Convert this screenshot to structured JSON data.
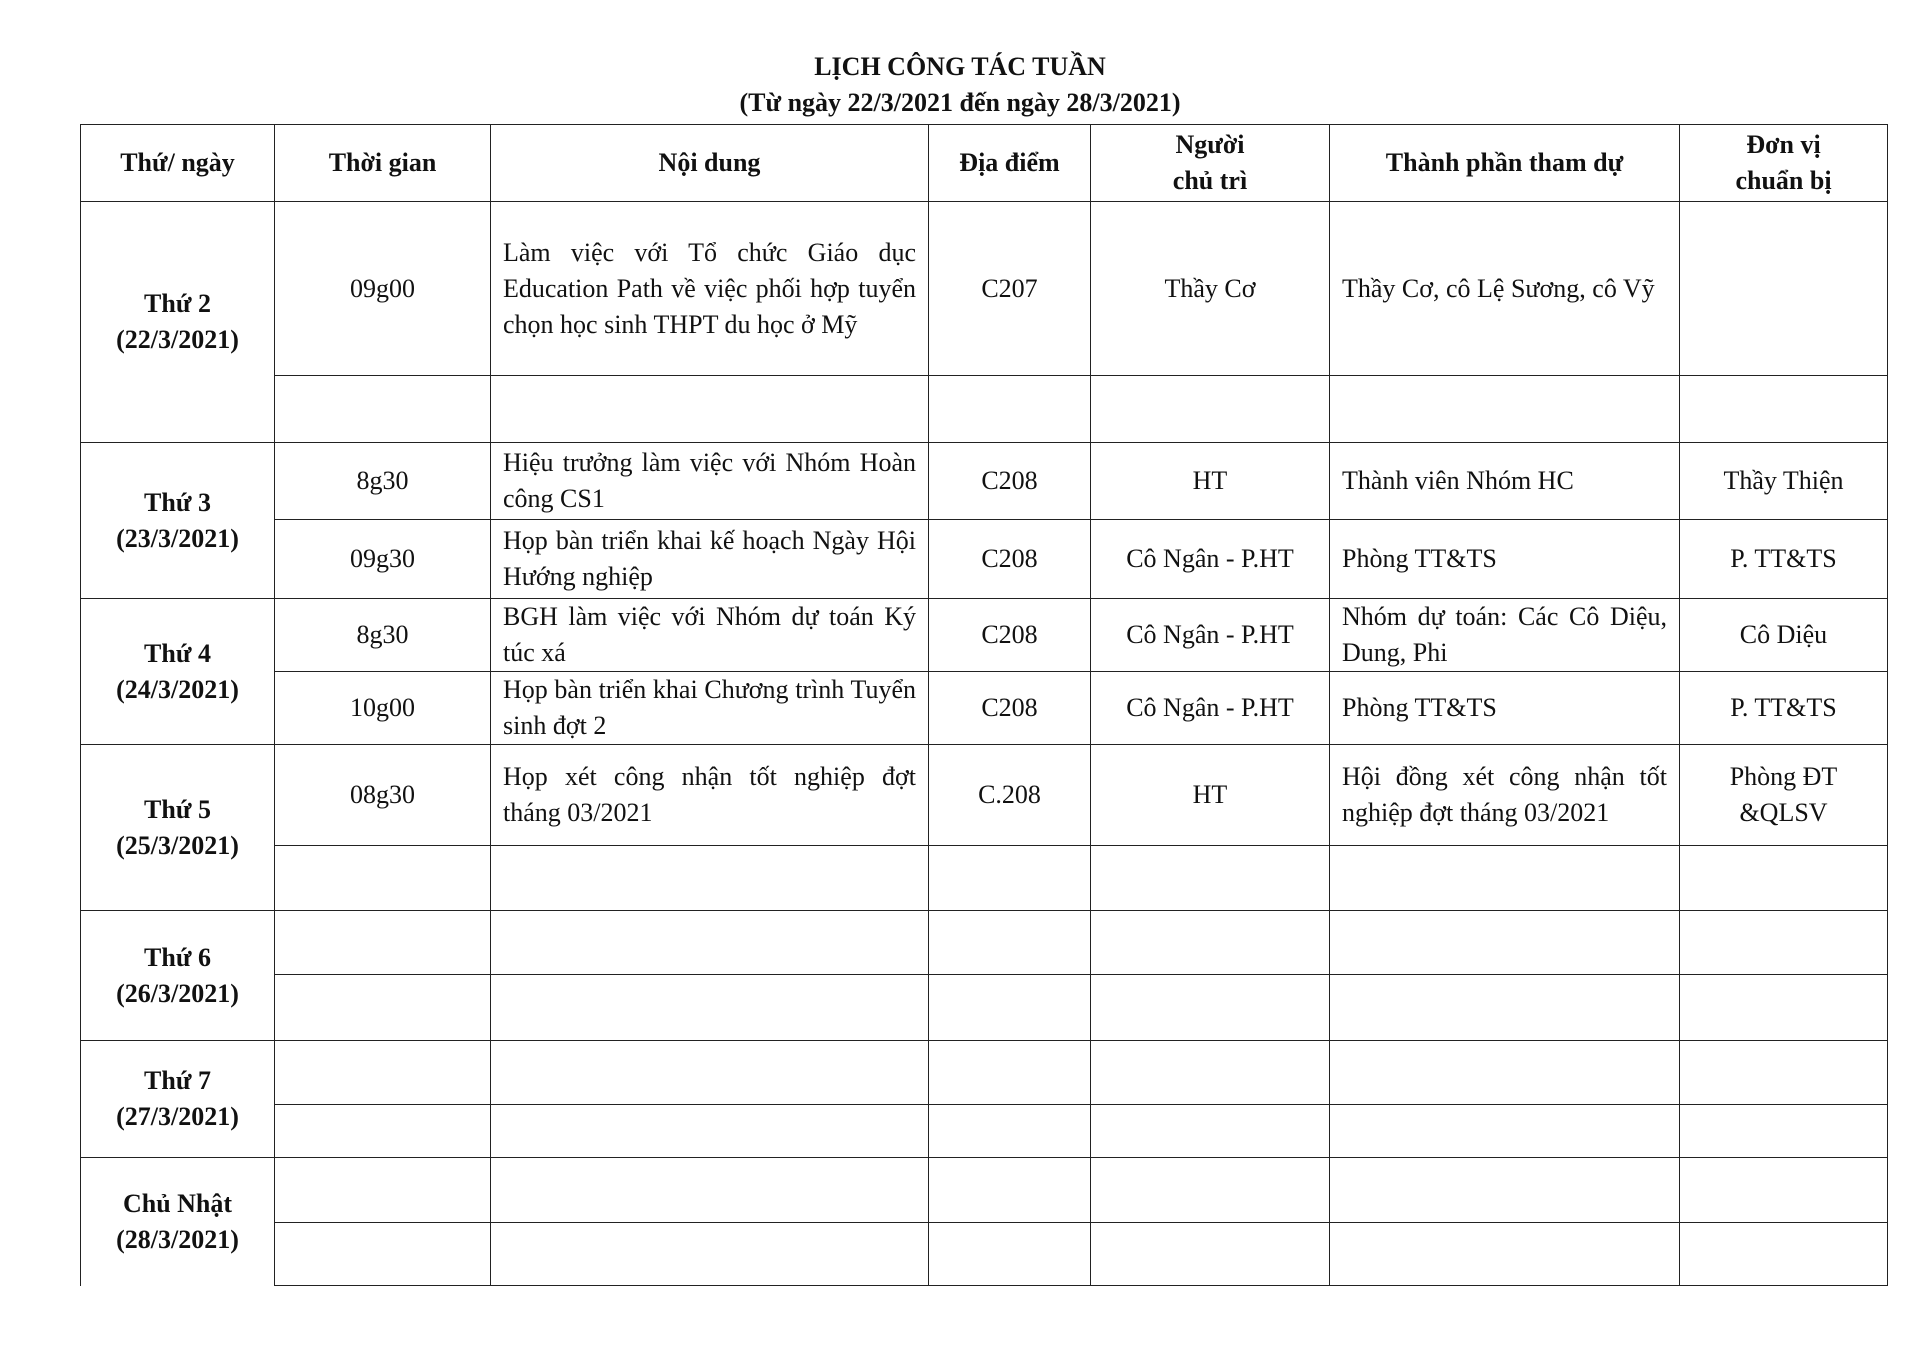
{
  "title": "LỊCH CÔNG TÁC TUẦN",
  "subtitle": "(Từ ngày 22/3/2021 đến ngày 28/3/2021)",
  "headers": [
    "Thứ/ ngày",
    "Thời gian",
    "Nội dung",
    "Địa điểm",
    "Người chủ trì",
    "Thành phần tham dự",
    "Đơn vị chuẩn bị"
  ],
  "days": [
    {
      "day": "Thứ 2",
      "date": "(22/3/2021)",
      "rows": [
        {
          "time": "09g00",
          "content": "Làm việc với Tổ chức Giáo dục Education Path về việc phối hợp tuyển chọn học sinh THPT du học ở Mỹ",
          "place": "C207",
          "host": "Thầy Cơ",
          "attendees": "Thầy Cơ, cô Lệ Sương, cô Vỹ",
          "prep": ""
        },
        {
          "time": "",
          "content": "",
          "place": "",
          "host": "",
          "attendees": "",
          "prep": ""
        }
      ]
    },
    {
      "day": "Thứ 3",
      "date": "(23/3/2021)",
      "rows": [
        {
          "time": "8g30",
          "content": "Hiệu trưởng làm việc với Nhóm Hoàn công CS1",
          "place": "C208",
          "host": "HT",
          "attendees": "Thành viên Nhóm HC",
          "prep": "Thầy Thiện"
        },
        {
          "time": "09g30",
          "content": "Họp bàn triển khai kế hoạch Ngày Hội Hướng nghiệp",
          "place": "C208",
          "host": "Cô Ngân - P.HT",
          "attendees": "Phòng TT&TS",
          "prep": "P. TT&TS"
        }
      ]
    },
    {
      "day": "Thứ 4",
      "date": "(24/3/2021)",
      "rows": [
        {
          "time": "8g30",
          "content": "BGH làm việc với Nhóm dự toán Ký túc xá",
          "place": "C208",
          "host": "Cô Ngân - P.HT",
          "attendees": "Nhóm dự toán: Các Cô Diệu, Dung, Phi",
          "prep": "Cô Diệu"
        },
        {
          "time": "10g00",
          "content": "Họp bàn triển khai Chương trình Tuyển sinh đợt 2",
          "place": "C208",
          "host": "Cô Ngân - P.HT",
          "attendees": "Phòng TT&TS",
          "prep": "P. TT&TS"
        }
      ]
    },
    {
      "day": "Thứ 5",
      "date": "(25/3/2021)",
      "rows": [
        {
          "time": "08g30",
          "content": "Họp xét công nhận tốt nghiệp đợt tháng 03/2021",
          "place": "C.208",
          "host": "HT",
          "attendees": "Hội đồng xét công nhận tốt nghiệp đợt tháng 03/2021",
          "prep": "Phòng ĐT &QLSV"
        },
        {
          "time": "",
          "content": "",
          "place": "",
          "host": "",
          "attendees": "",
          "prep": ""
        }
      ]
    },
    {
      "day": "Thứ 6",
      "date": "(26/3/2021)",
      "rows": [
        {
          "time": "",
          "content": "",
          "place": "",
          "host": "",
          "attendees": "",
          "prep": ""
        },
        {
          "time": "",
          "content": "",
          "place": "",
          "host": "",
          "attendees": "",
          "prep": ""
        }
      ]
    },
    {
      "day": "Thứ 7",
      "date": "(27/3/2021)",
      "rows": [
        {
          "time": "",
          "content": "",
          "place": "",
          "host": "",
          "attendees": "",
          "prep": ""
        },
        {
          "time": "",
          "content": "",
          "place": "",
          "host": "",
          "attendees": "",
          "prep": ""
        }
      ]
    },
    {
      "day": "Chủ Nhật",
      "date": "(28/3/2021)",
      "rows": [
        {
          "time": "",
          "content": "",
          "place": "",
          "host": "",
          "attendees": "",
          "prep": ""
        },
        {
          "time": "",
          "content": "",
          "place": "",
          "host": "",
          "attendees": "",
          "prep": ""
        }
      ]
    }
  ]
}
